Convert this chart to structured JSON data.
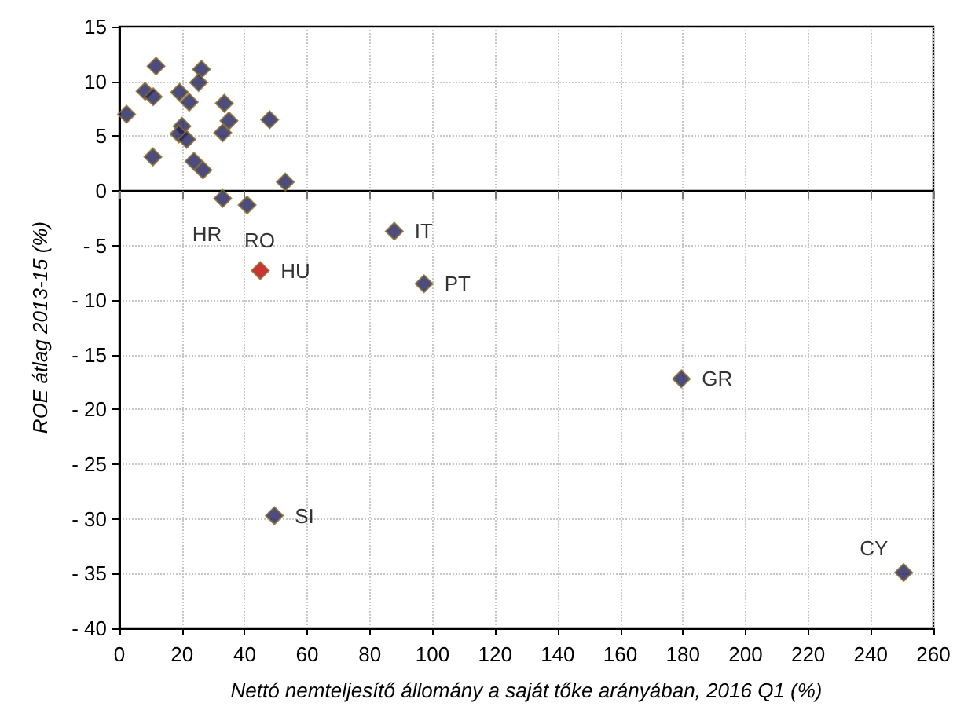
{
  "chart_data": {
    "type": "scatter",
    "xlabel": "Nettó nemteljesítő állomány a saját tőke arányában, 2016 Q1 (%)",
    "ylabel": "ROE átlag 2013-15 (%)",
    "x": [
      2.3,
      11.7,
      8.2,
      10.8,
      10.7,
      19.2,
      22.3,
      26.2,
      25.3,
      20,
      19,
      21.5,
      23.8,
      26.7,
      33.5,
      35,
      33,
      48,
      53,
      33,
      40.8,
      87.8,
      45,
      97.3,
      179.5,
      49.5,
      250.5
    ],
    "values": [
      7.0,
      11.4,
      9.1,
      8.6,
      3.1,
      9.0,
      8.1,
      11.1,
      9.9,
      5.9,
      5.2,
      4.7,
      2.7,
      1.9,
      8.0,
      6.4,
      5.3,
      6.5,
      0.8,
      -0.7,
      -1.3,
      -3.7,
      -7.3,
      -8.5,
      -17.2,
      -29.7,
      -34.9
    ],
    "value_labels": [
      null,
      null,
      null,
      null,
      null,
      null,
      null,
      null,
      null,
      null,
      null,
      null,
      null,
      null,
      null,
      null,
      null,
      null,
      null,
      "HR",
      "RO",
      "IT",
      "HU",
      "PT",
      "GR",
      "SI",
      "CY"
    ],
    "colors": [
      "#1f1f5c",
      "#1f1f5c",
      "#1f1f5c",
      "#1f1f5c",
      "#1f1f5c",
      "#1f1f5c",
      "#1f1f5c",
      "#1f1f5c",
      "#1f1f5c",
      "#1f1f5c",
      "#1f1f5c",
      "#1f1f5c",
      "#1f1f5c",
      "#1f1f5c",
      "#1f1f5c",
      "#1f1f5c",
      "#1f1f5c",
      "#1f1f5c",
      "#1f1f5c",
      "#1f1f5c",
      "#1f1f5c",
      "#1f1f5c",
      "#c00000",
      "#1f1f5c",
      "#1f1f5c",
      "#1f1f5c",
      "#1f1f5c"
    ],
    "marker": "diamond",
    "grid": true,
    "xlim": [
      0,
      260
    ],
    "xticks": [
      0,
      20,
      40,
      60,
      80,
      100,
      120,
      140,
      160,
      180,
      200,
      220,
      240,
      260
    ],
    "ylim": [
      -40,
      15
    ],
    "yticks": [
      {
        "value": -40,
        "label": "- 40"
      },
      {
        "value": -35,
        "label": "- 35"
      },
      {
        "value": -30,
        "label": "- 30"
      },
      {
        "value": -25,
        "label": "- 25"
      },
      {
        "value": -20,
        "label": "- 20"
      },
      {
        "value": -15,
        "label": "- 15"
      },
      {
        "value": -10,
        "label": "- 10"
      },
      {
        "value": -5,
        "label": "- 5"
      },
      0,
      5,
      10,
      15
    ]
  }
}
